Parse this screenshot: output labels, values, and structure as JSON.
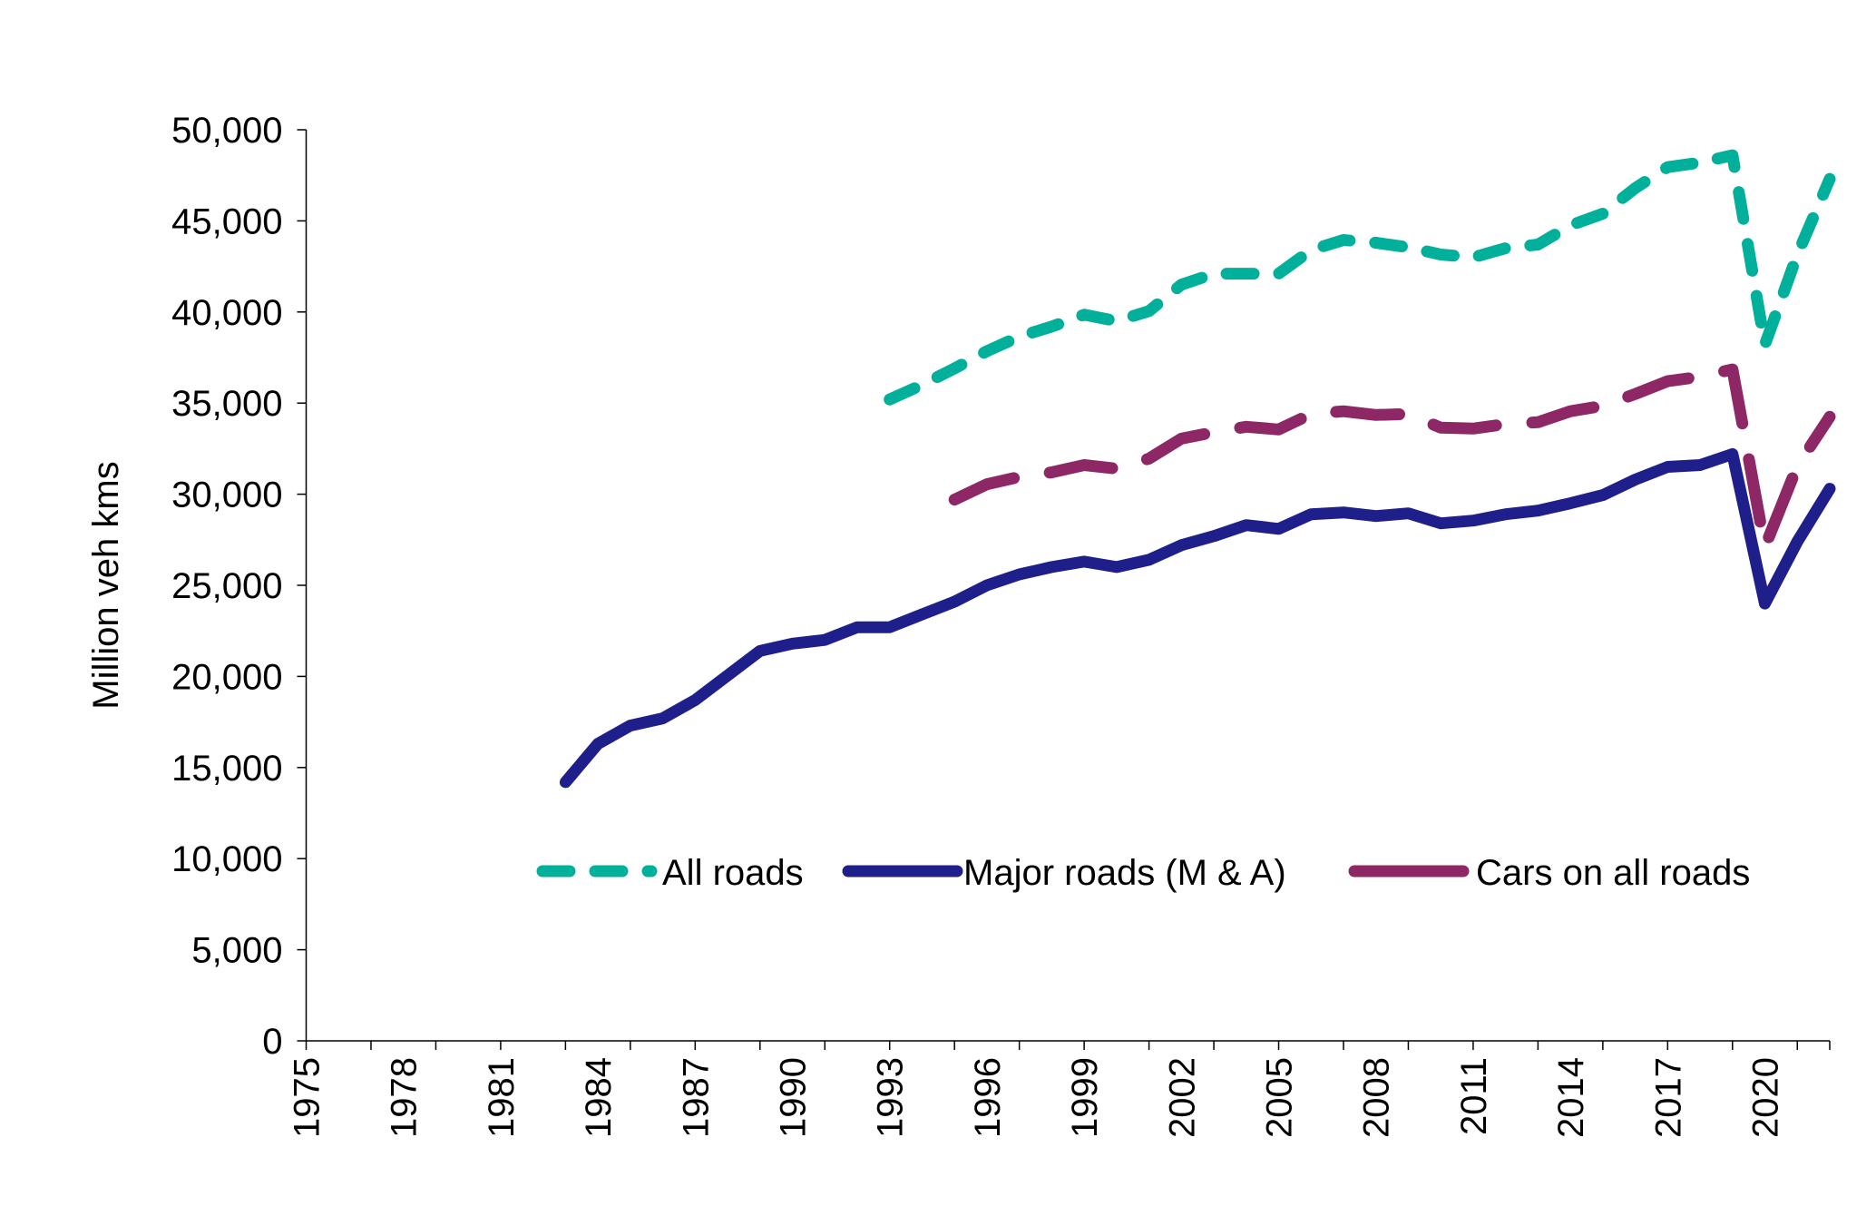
{
  "chart_data": {
    "type": "line",
    "title": "",
    "xlabel": "",
    "ylabel": "Million veh kms",
    "xlim": [
      1975,
      2022
    ],
    "ylim": [
      0,
      50000
    ],
    "x_ticks": [
      1975,
      1978,
      1981,
      1984,
      1987,
      1990,
      1993,
      1996,
      1999,
      2002,
      2005,
      2008,
      2011,
      2014,
      2017,
      2020
    ],
    "y_ticks": [
      "0",
      "5,000",
      "10,000",
      "15,000",
      "20,000",
      "25,000",
      "30,000",
      "35,000",
      "40,000",
      "45,000",
      "50,000"
    ],
    "grid": false,
    "legend_position": "bottom-right",
    "series": [
      {
        "name": "All roads",
        "color": "#00B09B",
        "style": "dashed",
        "x": [
          1993,
          1994,
          1995,
          1996,
          1997,
          1998,
          1999,
          2000,
          2001,
          2002,
          2003,
          2004,
          2005,
          2006,
          2007,
          2008,
          2009,
          2010,
          2011,
          2012,
          2013,
          2014,
          2015,
          2016,
          2017,
          2018,
          2019,
          2020,
          2021,
          2022
        ],
        "values": [
          35200,
          36000,
          36900,
          37850,
          38650,
          39200,
          39850,
          39500,
          40050,
          41500,
          42100,
          42100,
          42100,
          43400,
          43950,
          43800,
          43550,
          43150,
          43000,
          43500,
          43700,
          44750,
          45400,
          46800,
          47950,
          48200,
          48600,
          38200,
          43150,
          47300
        ]
      },
      {
        "name": "Major roads (M & A)",
        "color": "#1F1F8C",
        "style": "solid",
        "x": [
          1983,
          1984,
          1985,
          1986,
          1987,
          1988,
          1989,
          1990,
          1991,
          1992,
          1993,
          1994,
          1995,
          1996,
          1997,
          1998,
          1999,
          2000,
          2001,
          2002,
          2003,
          2004,
          2005,
          2006,
          2007,
          2008,
          2009,
          2010,
          2011,
          2012,
          2013,
          2014,
          2015,
          2016,
          2017,
          2018,
          2019,
          2020,
          2021,
          2022
        ],
        "values": [
          14200,
          16300,
          17300,
          17700,
          18700,
          20050,
          21400,
          21800,
          22000,
          22700,
          22700,
          23400,
          24100,
          25000,
          25600,
          26000,
          26300,
          26000,
          26400,
          27200,
          27700,
          28300,
          28100,
          28900,
          29000,
          28800,
          28950,
          28400,
          28550,
          28900,
          29100,
          29500,
          29950,
          30800,
          31500,
          31600,
          32200,
          24000,
          27400,
          30300
        ]
      },
      {
        "name": "Cars on all roads",
        "color": "#8E2766",
        "style": "long-dash",
        "x": [
          1995,
          1996,
          1997,
          1998,
          1999,
          2000,
          2001,
          2002,
          2003,
          2004,
          2005,
          2006,
          2007,
          2008,
          2009,
          2010,
          2011,
          2012,
          2013,
          2014,
          2015,
          2016,
          2017,
          2018,
          2019,
          2020,
          2021,
          2022
        ],
        "values": [
          29700,
          30550,
          30950,
          31200,
          31600,
          31400,
          31950,
          33050,
          33400,
          33700,
          33550,
          34400,
          34550,
          34350,
          34400,
          33650,
          33600,
          33850,
          33950,
          34550,
          34850,
          35500,
          36200,
          36450,
          36850,
          27100,
          31550,
          34250
        ]
      }
    ]
  }
}
